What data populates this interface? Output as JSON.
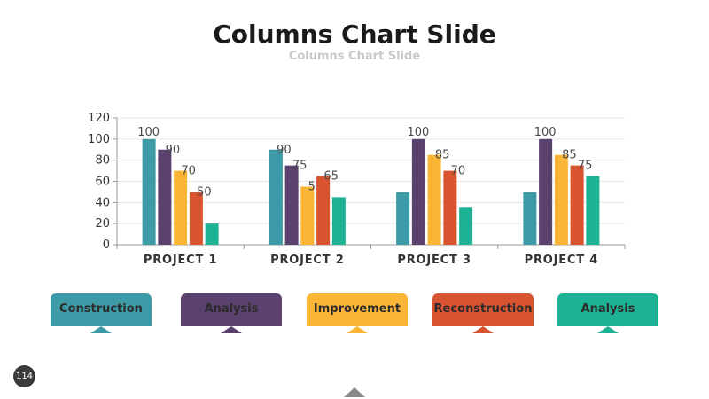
{
  "slide": {
    "title": "Columns Chart Slide",
    "subtitle": "Columns Chart Slide",
    "page_number": "114",
    "nav_icon": "triangle-up-icon"
  },
  "legend": [
    {
      "label": "Construction",
      "color": "#3d9ba8"
    },
    {
      "label": "Analysis",
      "color": "#5a416e"
    },
    {
      "label": "Improvement",
      "color": "#fbb534"
    },
    {
      "label": "Reconstruction",
      "color": "#d8532f"
    },
    {
      "label": "Analysis",
      "color": "#1cb293"
    }
  ],
  "chart_data": {
    "type": "bar",
    "categories": [
      "PROJECT 1",
      "PROJECT 2",
      "PROJECT 3",
      "PROJECT 4"
    ],
    "series": [
      {
        "values": [
          100,
          90,
          50,
          50
        ],
        "labeled": [
          true,
          true,
          false,
          false
        ],
        "color": "#3d9ba8"
      },
      {
        "values": [
          90,
          75,
          100,
          100
        ],
        "labeled": [
          true,
          true,
          true,
          true
        ],
        "color": "#5a416e"
      },
      {
        "values": [
          70,
          55,
          85,
          85
        ],
        "labeled": [
          true,
          true,
          true,
          true
        ],
        "color": "#fbb534"
      },
      {
        "values": [
          50,
          65,
          70,
          75
        ],
        "labeled": [
          true,
          true,
          true,
          true
        ],
        "color": "#d8532f"
      },
      {
        "values": [
          20,
          45,
          35,
          65
        ],
        "labeled": [
          false,
          false,
          false,
          false
        ],
        "color": "#1cb293"
      }
    ],
    "ylim": [
      0,
      120
    ],
    "yticks": [
      "0",
      "20",
      "40",
      "60",
      "80",
      "100",
      "120"
    ],
    "grid": true
  }
}
